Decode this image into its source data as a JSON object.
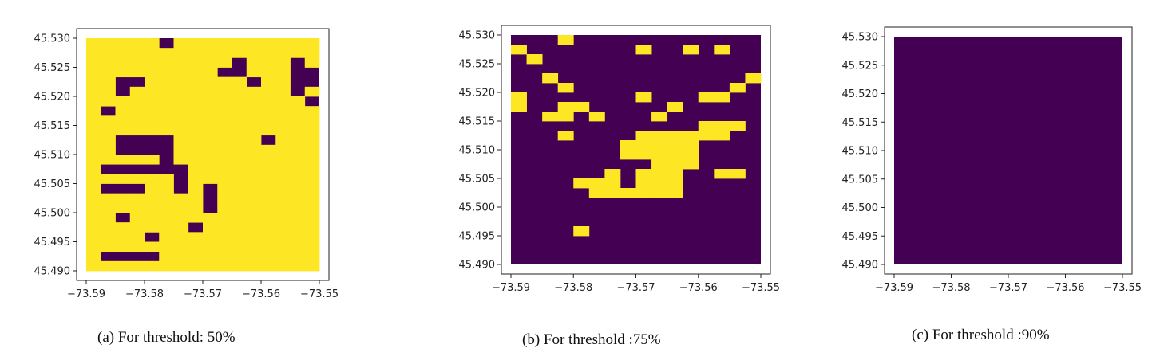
{
  "colors": {
    "low": "#440154",
    "high": "#fde725",
    "frame": "#ffffff",
    "axis": "#222222"
  },
  "chart_data": [
    {
      "type": "heatmap",
      "caption": "(a)  For threshold: 50%",
      "xlim": [
        -73.59,
        -73.55
      ],
      "ylim": [
        45.49,
        45.53
      ],
      "xticks": [
        "−73.59",
        "−73.58",
        "−73.57",
        "−73.56",
        "−73.55"
      ],
      "yticks": [
        "45.530",
        "45.525",
        "45.520",
        "45.515",
        "45.510",
        "45.505",
        "45.500",
        "45.495",
        "45.490"
      ],
      "grid": [
        "1111101111111111",
        "1111111111111111",
        "1111111111011101",
        "1111111110011100",
        "1100111111101100",
        "1101111111111101",
        "1111111111111110",
        "1011111111111111",
        "1111111111111111",
        "1111111111111111",
        "1100001111110111",
        "1100001111111111",
        "1111101111111111",
        "1000000111111111",
        "1111110111111111",
        "1000110101111111",
        "1111111101111111",
        "1111111101111111",
        "1101111111111111",
        "1111111011111111",
        "1111011111111111",
        "1111111111111111",
        "1000011111111111",
        "1111111111111111"
      ]
    },
    {
      "type": "heatmap",
      "caption": "(b) For threshold :75%",
      "xlim": [
        -73.59,
        -73.55
      ],
      "ylim": [
        45.49,
        45.53
      ],
      "xticks": [
        "−73.59",
        "−73.58",
        "−73.57",
        "−73.56",
        "−73.55"
      ],
      "yticks": [
        "45.530",
        "45.525",
        "45.520",
        "45.515",
        "45.510",
        "45.505",
        "45.500",
        "45.495",
        "45.490"
      ],
      "grid": [
        "0001000000000000",
        "1000000010010100",
        "0100000000000000",
        "0000000000000000",
        "0010000000000001",
        "0001000000000010",
        "1000000010001100",
        "1001100000100000",
        "0011010001000000",
        "0000000000001110",
        "0001000011111100",
        "0000000111110000",
        "0000000111110000",
        "0000000001110000",
        "0000001011100110",
        "0000111011100000",
        "0000011111100000",
        "0000000000000000",
        "0000000000000000",
        "0000000000000000",
        "0000100000000000",
        "0000000000000000",
        "0000000000000000",
        "0000000000000000"
      ]
    },
    {
      "type": "heatmap",
      "caption": "(c) For threshold :90%",
      "xlim": [
        -73.59,
        -73.55
      ],
      "ylim": [
        45.49,
        45.53
      ],
      "xticks": [
        "−73.59",
        "−73.58",
        "−73.57",
        "−73.56",
        "−73.55"
      ],
      "yticks": [
        "45.530",
        "45.525",
        "45.520",
        "45.515",
        "45.510",
        "45.505",
        "45.500",
        "45.495",
        "45.490"
      ],
      "grid": [
        "0000000000000000",
        "0000000000000000",
        "0000000000000000",
        "0000000000000000",
        "0000000000000000",
        "0000000000000000",
        "0000000000000000",
        "0000000000000000",
        "0000000000000000",
        "0000000000000000",
        "0000000000000000",
        "0000000000000000",
        "0000000000000000",
        "0000000000000000",
        "0000000000000000",
        "0000000000000000",
        "0000000000000000",
        "0000000000000000",
        "0000000000000000",
        "0000000000000000",
        "0000000000000000",
        "0000000000000000",
        "0000000000000000",
        "0000000000000000"
      ]
    }
  ]
}
